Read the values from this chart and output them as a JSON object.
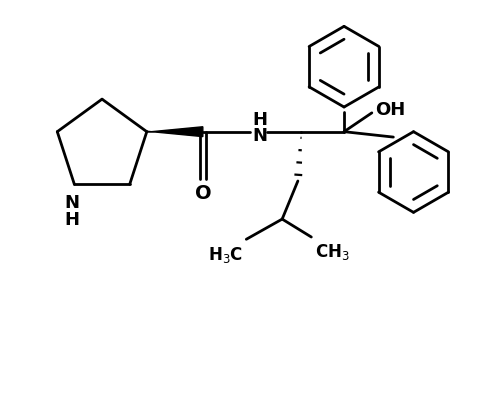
{
  "background_color": "#ffffff",
  "line_color": "#000000",
  "line_width": 2.0,
  "font_size": 12,
  "figsize": [
    4.82,
    4.09
  ],
  "dpi": 100,
  "xlim": [
    0,
    10
  ],
  "ylim": [
    0,
    9
  ]
}
